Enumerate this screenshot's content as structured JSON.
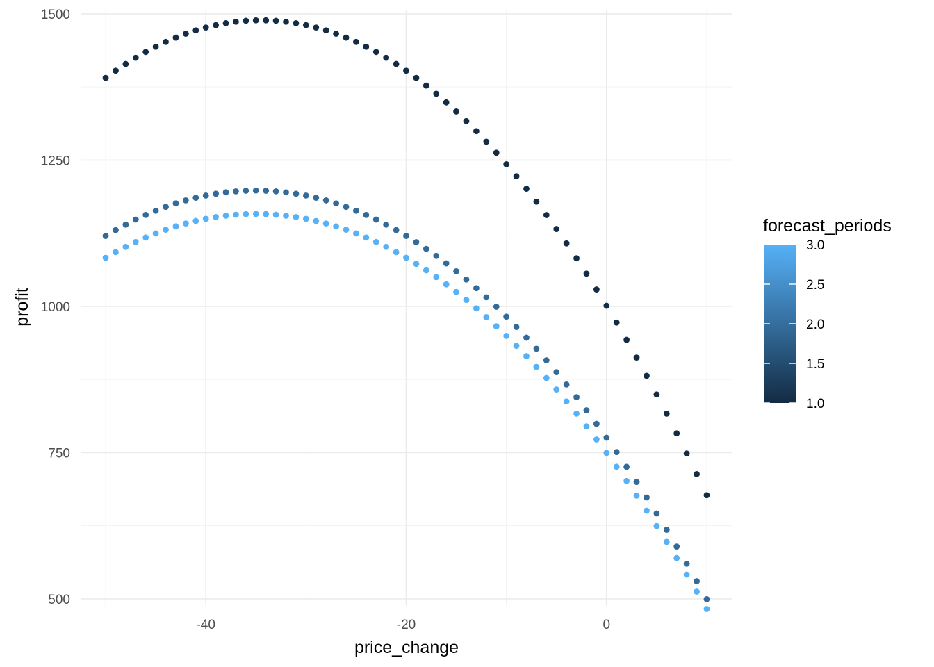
{
  "chart_data": {
    "type": "scatter",
    "xlabel": "price_change",
    "ylabel": "profit",
    "xlim": [
      -52.5,
      12.5
    ],
    "ylim": [
      488,
      1507
    ],
    "x_ticks": [
      -40,
      -20,
      0
    ],
    "x_tick_labels": [
      "-40",
      "-20",
      "0"
    ],
    "x_minor_ticks": [
      -50,
      -30,
      -10,
      10
    ],
    "y_ticks": [
      500,
      750,
      1000,
      1250,
      1500
    ],
    "y_tick_labels": [
      "500",
      "750",
      "1000",
      "1250",
      "1500"
    ],
    "y_minor_ticks": [
      625,
      875,
      1125,
      1375
    ],
    "grid": true,
    "x": [
      -50,
      -49,
      -48,
      -47,
      -46,
      -45,
      -44,
      -43,
      -42,
      -41,
      -40,
      -39,
      -38,
      -37,
      -36,
      -35,
      -34,
      -33,
      -32,
      -31,
      -30,
      -29,
      -28,
      -27,
      -26,
      -25,
      -24,
      -23,
      -22,
      -21,
      -20,
      -19,
      -18,
      -17,
      -16,
      -15,
      -14,
      -13,
      -12,
      -11,
      -10,
      -9,
      -8,
      -7,
      -6,
      -5,
      -4,
      -3,
      -2,
      -1,
      0,
      1,
      2,
      3,
      4,
      5,
      6,
      7,
      8,
      9,
      10
    ],
    "series": [
      {
        "forecast_periods": 1,
        "color": "#132b43",
        "a": 1489,
        "b": -34.5,
        "c": 0.41
      },
      {
        "forecast_periods": 2,
        "color": "#336a98",
        "a": 1198,
        "b": -35,
        "c": 0.345
      },
      {
        "forecast_periods": 3,
        "color": "#56b1f7",
        "a": 1158,
        "b": -35,
        "c": 0.3335
      }
    ],
    "legend": {
      "title": "forecast_periods",
      "position": "right",
      "labels": [
        "3.0",
        "2.5",
        "2.0",
        "1.5",
        "1.0"
      ],
      "low": 1.0,
      "high": 3.0,
      "low_color": "#132b43",
      "high_color": "#56b1f7"
    }
  }
}
